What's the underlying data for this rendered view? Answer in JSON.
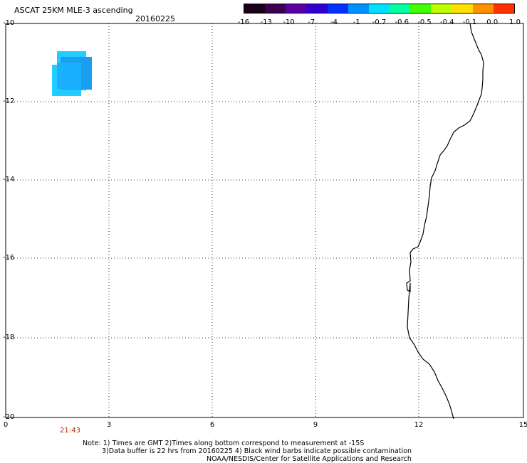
{
  "title": "ASCAT 25KM MLE-3 ascending",
  "date": "20160225",
  "colorbar": {
    "labels": [
      "-16",
      "-13",
      "-10",
      "-7",
      "-4",
      "-1",
      "-0.7",
      "-0.6",
      "-0.5",
      "-0.4",
      "-0.1",
      "0.0",
      "1.0"
    ],
    "colors": [
      "#1a0018",
      "#3b0050",
      "#5a00a0",
      "#3000d0",
      "#0030ff",
      "#0090ff",
      "#00e0ff",
      "#00ffa0",
      "#40ff00",
      "#c0ff00",
      "#ffe000",
      "#ff9000",
      "#ff3000"
    ]
  },
  "axes": {
    "y_labels": [
      "-10",
      "-12",
      "-14",
      "-16",
      "-18",
      "-20"
    ],
    "x_labels": [
      "0",
      "3",
      "6",
      "9",
      "12",
      "15"
    ]
  },
  "time_label": "21:43",
  "notes": [
    "Note: 1) Times are GMT 2)Times along bottom correspond to measurement at -15S",
    "3)Data buffer is 22 hrs from 20160225 4) Black wind barbs indicate possible contamination",
    "NOAA/NESDIS/Center for Satellite Applications and Research"
  ],
  "colors": {
    "data_light": "#22ccff",
    "data_mid": "#11aaff",
    "data_dark": "#1b8de8",
    "coast": "#000000"
  }
}
